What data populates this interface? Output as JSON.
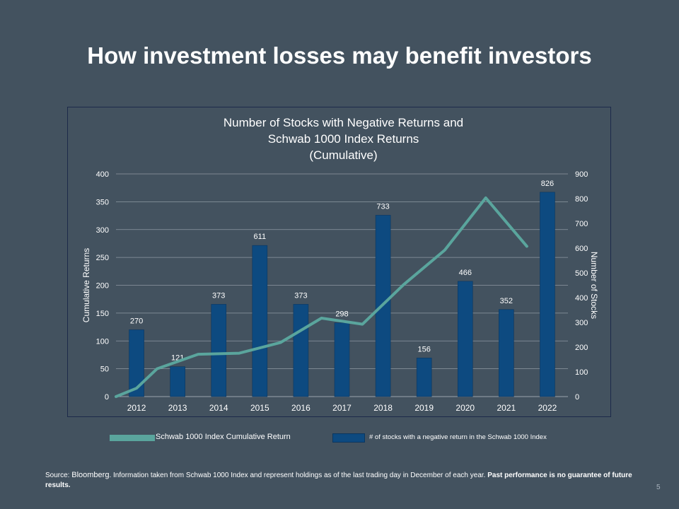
{
  "slide": {
    "title": "How investment losses may benefit investors",
    "source_prefix": "Source: ",
    "source_name": "Bloomberg",
    "source_middle": ". Information taken from Schwab 1000 Index and represent holdings as of the last trading day in December of each year. ",
    "source_bold": "Past performance is no guarantee of future results.",
    "page_number": "5"
  },
  "legend": {
    "line_label": "Schwab 1000 Index Cumulative Return",
    "bar_label": "# of stocks with a negative return in the Schwab 1000 Index"
  },
  "colors": {
    "background": "#43525f",
    "bar": "#0d4a80",
    "line": "#5aa59d",
    "grid": "#8f99a3"
  },
  "chart_data": {
    "type": "bar",
    "title_lines": [
      "Number of Stocks with Negative Returns and",
      "Schwab 1000 Index Returns",
      "(Cumulative)"
    ],
    "categories": [
      "2012",
      "2013",
      "2014",
      "2015",
      "2016",
      "2017",
      "2018",
      "2019",
      "2020",
      "2021",
      "2022"
    ],
    "bar_series": {
      "name": "# of stocks with a negative return in the Schwab 1000 Index",
      "axis": "right",
      "values": [
        270,
        121,
        373,
        611,
        373,
        298,
        733,
        156,
        466,
        352,
        826
      ],
      "data_labels": [
        "270",
        "121",
        "373",
        "611",
        "373",
        "298",
        "733",
        "156",
        "466",
        "352",
        "826"
      ]
    },
    "line_series": {
      "name": "Schwab 1000 Index Cumulative Return",
      "axis": "left",
      "x_offsets": [
        -0.5,
        0,
        0.5,
        1.5,
        2.5,
        3.5,
        4.5,
        5.5,
        6.5,
        7.5,
        8.5,
        9.5
      ],
      "values": [
        0,
        15,
        50,
        76,
        78,
        97,
        141,
        130,
        201,
        263,
        357,
        270
      ]
    },
    "y_left": {
      "label": "Cumulative Returns",
      "min": 0,
      "max": 400,
      "ticks": [
        "0",
        "50",
        "100",
        "150",
        "200",
        "250",
        "300",
        "350",
        "400"
      ]
    },
    "y_right": {
      "label": "Number of Stocks",
      "min": 0,
      "max": 900,
      "ticks": [
        "0",
        "100",
        "200",
        "300",
        "400",
        "500",
        "600",
        "700",
        "800",
        "900"
      ]
    },
    "grid": true,
    "legend_position": "bottom"
  }
}
